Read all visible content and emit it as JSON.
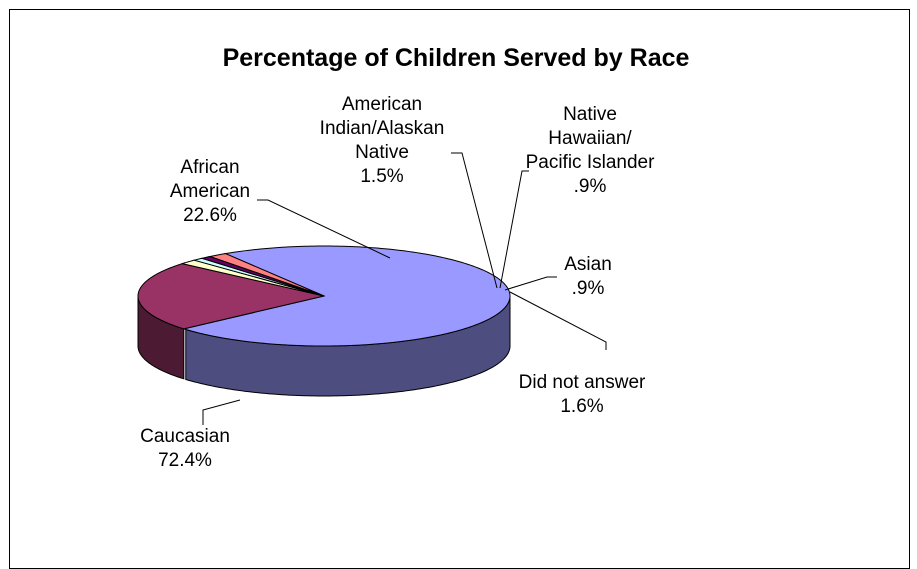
{
  "chart_data": {
    "type": "pie",
    "style": "3d",
    "title": "Percentage of Children Served by Race",
    "slices": [
      {
        "label_lines": [
          "Caucasian"
        ],
        "value_text": "72.4%",
        "value": 72.4,
        "color": "#9999FF",
        "side_color": "#4D4D80"
      },
      {
        "label_lines": [
          "African",
          "American"
        ],
        "value_text": "22.6%",
        "value": 22.6,
        "color": "#993366",
        "side_color": "#4D1A33"
      },
      {
        "label_lines": [
          "American",
          "Indian/Alaskan",
          "Native"
        ],
        "value_text": "1.5%",
        "value": 1.5,
        "color": "#FFFFCC",
        "side_color": "#808066"
      },
      {
        "label_lines": [
          "Native",
          "Hawaiian/",
          "Pacific Islander"
        ],
        "value_text": ".9%",
        "value": 0.9,
        "color": "#CCFFFF",
        "side_color": "#668080"
      },
      {
        "label_lines": [
          "Asian"
        ],
        "value_text": ".9%",
        "value": 0.9,
        "color": "#660066",
        "side_color": "#330033"
      },
      {
        "label_lines": [
          "Did not answer"
        ],
        "value_text": "1.6%",
        "value": 1.6,
        "color": "#FF8080",
        "side_color": "#804040"
      }
    ]
  }
}
